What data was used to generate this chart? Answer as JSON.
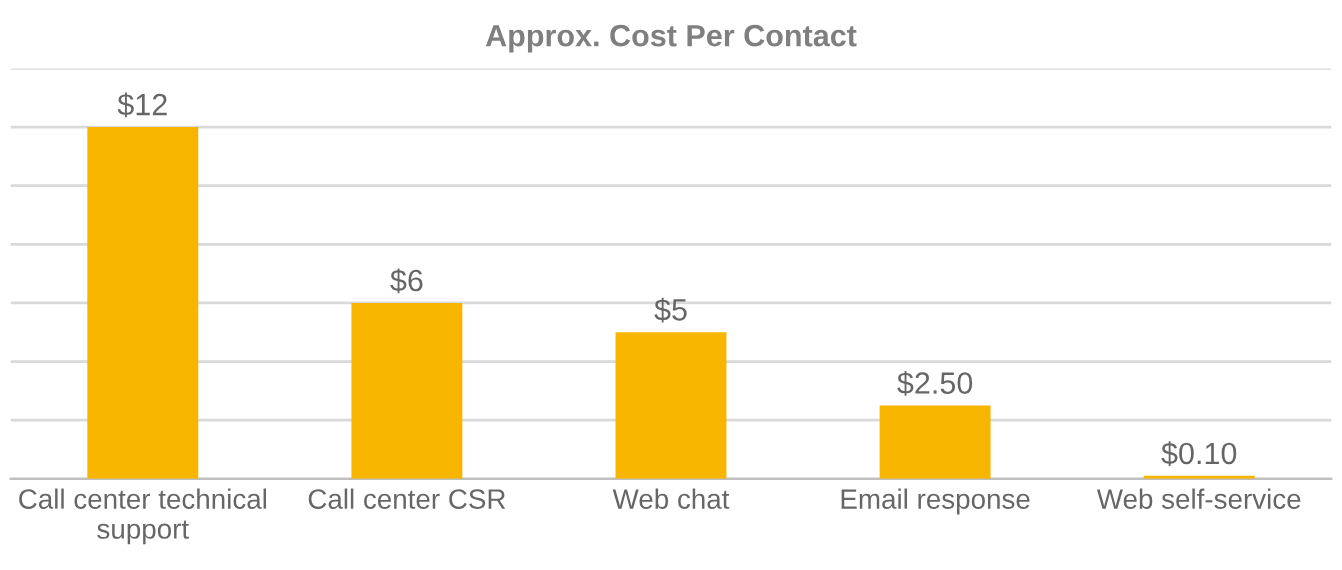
{
  "chart_data": {
    "type": "bar",
    "title": "Approx. Cost Per Contact",
    "categories": [
      "Call center technical\nsupport",
      "Call center CSR",
      "Web chat",
      "Email response",
      "Web self-service"
    ],
    "values": [
      12,
      6,
      5,
      2.5,
      0.1
    ],
    "value_labels": [
      "$12",
      "$6",
      "$5",
      "$2.50",
      "$0.10"
    ],
    "color": "#f7b500",
    "ylim": [
      0,
      14
    ],
    "yticks": [
      {
        "value": 0,
        "label": null
      },
      {
        "value": 2,
        "label": null
      },
      {
        "value": 4,
        "label": null
      },
      {
        "value": 6,
        "label": null
      },
      {
        "value": 8,
        "label": null
      },
      {
        "value": 10,
        "label": null
      },
      {
        "value": 12,
        "label": null
      },
      {
        "value": 14,
        "label": null
      }
    ],
    "tick_labels": "x",
    "grid": "y",
    "legend": false
  }
}
